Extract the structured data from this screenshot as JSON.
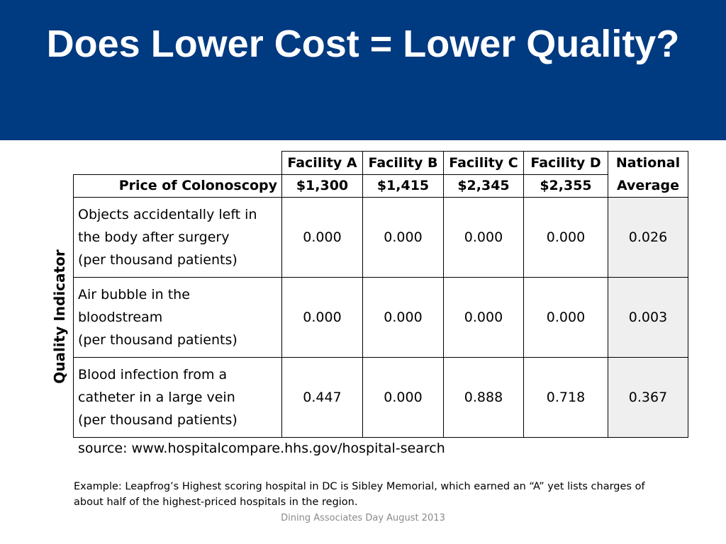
{
  "slide": {
    "title": "Does Lower Cost = Lower Quality?",
    "y_axis_label": "Quality Indicator",
    "source": "source: www.hospitalcompare.hhs.gov/hospital-search",
    "example": "Example:  Leapfrog’s Highest scoring hospital in DC is Sibley Memorial, which earned an “A” yet lists charges of about half of the highest-priced hospitals in the region.",
    "footer": "Dining Associates Day August 2013"
  },
  "colors": {
    "header_bg": "#003a80",
    "national_shade": "#efefef"
  },
  "table": {
    "facilities": [
      "Facility A",
      "Facility B",
      "Facility C",
      "Facility D"
    ],
    "national_header_line1": "National",
    "national_header_line2": "Average",
    "price_label": "Price of Colonoscopy",
    "prices": [
      "$1,300",
      "$1,415",
      "$2,345",
      "$2,355"
    ],
    "rows": [
      {
        "indicator_lines": [
          "Objects accidentally left in",
          "the body after surgery",
          "(per thousand patients)"
        ],
        "values": [
          "0.000",
          "0.000",
          "0.000",
          "0.000"
        ],
        "national": "0.026"
      },
      {
        "indicator_lines": [
          "Air bubble in the",
          "bloodstream",
          "(per thousand patients)"
        ],
        "values": [
          "0.000",
          "0.000",
          "0.000",
          "0.000"
        ],
        "national": "0.003"
      },
      {
        "indicator_lines": [
          "Blood infection from a",
          "catheter in a large vein",
          "(per thousand patients)"
        ],
        "values": [
          "0.447",
          "0.000",
          "0.888",
          "0.718"
        ],
        "national": "0.367"
      }
    ]
  }
}
